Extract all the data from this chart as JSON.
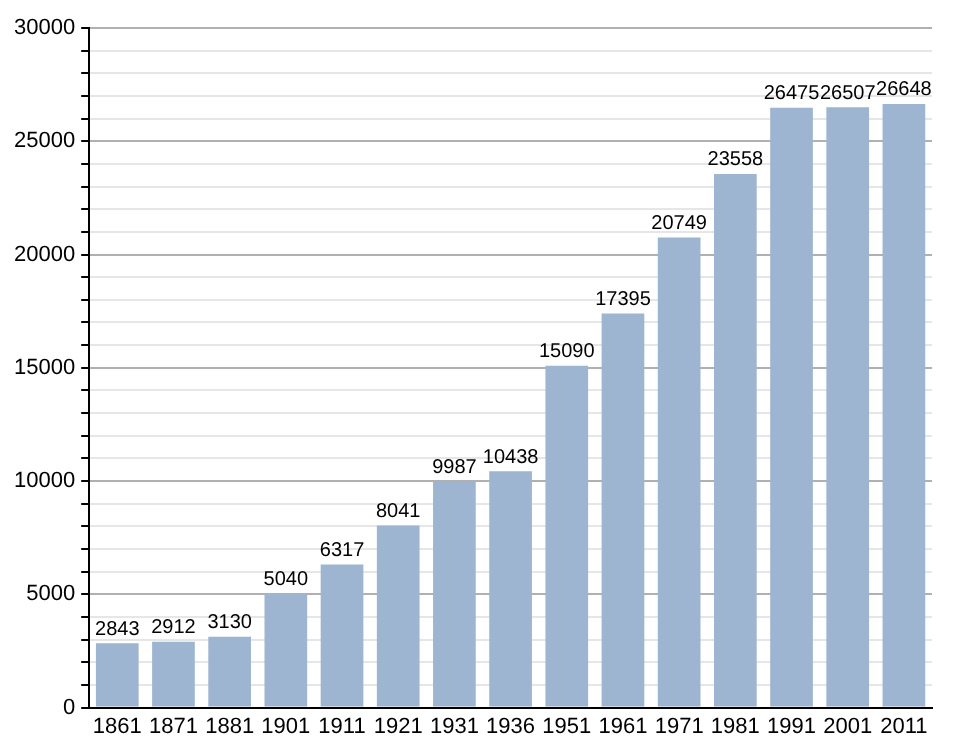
{
  "chart_data": {
    "type": "bar",
    "categories": [
      "1861",
      "1871",
      "1881",
      "1901",
      "1911",
      "1921",
      "1931",
      "1936",
      "1951",
      "1961",
      "1971",
      "1981",
      "1991",
      "2001",
      "2011"
    ],
    "values": [
      2843,
      2912,
      3130,
      5040,
      6317,
      8041,
      9987,
      10438,
      15090,
      17395,
      20749,
      23558,
      26475,
      26507,
      26648
    ],
    "color": "#9db5d1",
    "ylim": [
      0,
      30000
    ],
    "yticks": [
      0,
      {
        "value": 1000,
        "label": null
      },
      {
        "value": 2000,
        "label": null
      },
      {
        "value": 3000,
        "label": null
      },
      {
        "value": 4000,
        "label": null
      },
      5000,
      {
        "value": 6000,
        "label": null
      },
      {
        "value": 7000,
        "label": null
      },
      {
        "value": 8000,
        "label": null
      },
      {
        "value": 9000,
        "label": null
      },
      10000,
      {
        "value": 11000,
        "label": null
      },
      {
        "value": 12000,
        "label": null
      },
      {
        "value": 13000,
        "label": null
      },
      {
        "value": 14000,
        "label": null
      },
      15000,
      {
        "value": 16000,
        "label": null
      },
      {
        "value": 17000,
        "label": null
      },
      {
        "value": 18000,
        "label": null
      },
      {
        "value": 19000,
        "label": null
      },
      20000,
      {
        "value": 21000,
        "label": null
      },
      {
        "value": 22000,
        "label": null
      },
      {
        "value": 23000,
        "label": null
      },
      {
        "value": 24000,
        "label": null
      },
      25000,
      {
        "value": 26000,
        "label": null
      },
      {
        "value": 27000,
        "label": null
      },
      {
        "value": 28000,
        "label": null
      },
      {
        "value": 29000,
        "label": null
      },
      30000
    ],
    "grid": "y",
    "data_labels": true
  }
}
